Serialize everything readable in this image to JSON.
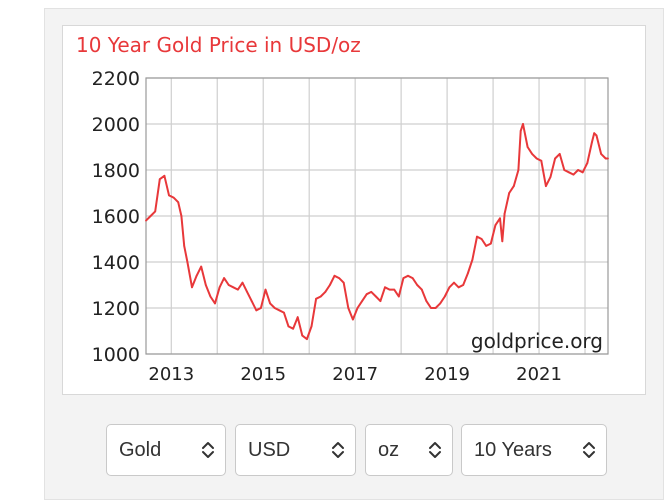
{
  "chart_data": {
    "type": "line",
    "title": "10 Year Gold Price in USD/oz",
    "watermark": "goldprice.org",
    "xlabel": "",
    "ylabel": "",
    "ylim": [
      1000,
      2200
    ],
    "xlim": [
      2012.45,
      2022.5
    ],
    "yticks": [
      1000,
      1200,
      1400,
      1600,
      1800,
      2000,
      2200
    ],
    "xticks": [
      2013,
      2015,
      2017,
      2019,
      2021
    ],
    "grid": true,
    "line_color": "#e8383a",
    "series": [
      {
        "name": "",
        "x": [
          2012.45,
          2012.55,
          2012.65,
          2012.75,
          2012.85,
          2012.95,
          2013.05,
          2013.15,
          2013.22,
          2013.28,
          2013.35,
          2013.45,
          2013.55,
          2013.65,
          2013.75,
          2013.85,
          2013.95,
          2014.05,
          2014.15,
          2014.25,
          2014.35,
          2014.45,
          2014.55,
          2014.65,
          2014.75,
          2014.85,
          2014.95,
          2015.05,
          2015.15,
          2015.25,
          2015.35,
          2015.45,
          2015.55,
          2015.65,
          2015.75,
          2015.85,
          2015.95,
          2016.05,
          2016.15,
          2016.25,
          2016.35,
          2016.45,
          2016.55,
          2016.65,
          2016.75,
          2016.85,
          2016.95,
          2017.05,
          2017.15,
          2017.25,
          2017.35,
          2017.45,
          2017.55,
          2017.65,
          2017.75,
          2017.85,
          2017.95,
          2018.05,
          2018.15,
          2018.25,
          2018.35,
          2018.45,
          2018.55,
          2018.65,
          2018.75,
          2018.85,
          2018.95,
          2019.05,
          2019.15,
          2019.25,
          2019.35,
          2019.45,
          2019.55,
          2019.65,
          2019.75,
          2019.85,
          2019.95,
          2020.05,
          2020.15,
          2020.2,
          2020.25,
          2020.35,
          2020.45,
          2020.55,
          2020.6,
          2020.65,
          2020.75,
          2020.85,
          2020.95,
          2021.05,
          2021.15,
          2021.25,
          2021.35,
          2021.45,
          2021.55,
          2021.65,
          2021.75,
          2021.85,
          2021.95,
          2022.05,
          2022.15,
          2022.2,
          2022.25,
          2022.35,
          2022.45,
          2022.5
        ],
        "values": [
          1580,
          1600,
          1620,
          1760,
          1775,
          1690,
          1680,
          1660,
          1600,
          1470,
          1400,
          1290,
          1340,
          1380,
          1300,
          1250,
          1220,
          1290,
          1330,
          1300,
          1290,
          1280,
          1310,
          1270,
          1230,
          1190,
          1200,
          1280,
          1220,
          1200,
          1190,
          1180,
          1120,
          1110,
          1160,
          1080,
          1065,
          1120,
          1240,
          1250,
          1270,
          1300,
          1340,
          1330,
          1310,
          1200,
          1150,
          1200,
          1230,
          1260,
          1270,
          1250,
          1230,
          1290,
          1280,
          1280,
          1250,
          1330,
          1340,
          1330,
          1300,
          1280,
          1230,
          1200,
          1200,
          1220,
          1250,
          1290,
          1310,
          1290,
          1300,
          1350,
          1410,
          1510,
          1500,
          1470,
          1480,
          1560,
          1590,
          1490,
          1610,
          1700,
          1730,
          1800,
          1970,
          2000,
          1900,
          1870,
          1850,
          1840,
          1730,
          1770,
          1850,
          1870,
          1800,
          1790,
          1780,
          1800,
          1790,
          1830,
          1920,
          1960,
          1950,
          1870,
          1850,
          1850
        ]
      }
    ]
  },
  "controls": {
    "metal": {
      "value": "Gold"
    },
    "currency": {
      "value": "USD"
    },
    "unit": {
      "value": "oz"
    },
    "range": {
      "value": "10 Years"
    }
  }
}
